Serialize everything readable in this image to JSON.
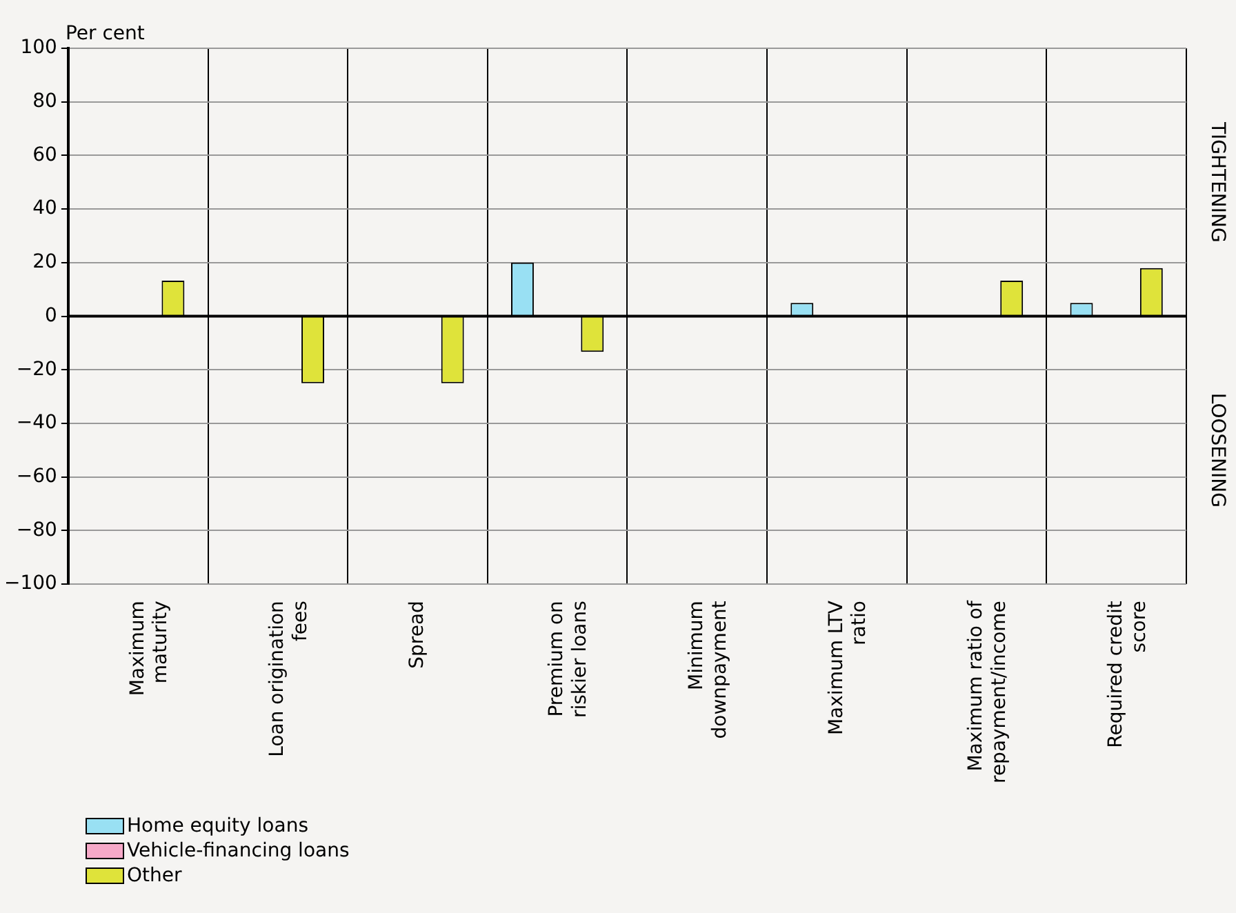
{
  "chart_data": {
    "type": "bar",
    "ylabel": "Per cent",
    "categories": [
      "Maximum maturity",
      "Loan origination fees",
      "Spread",
      "Premium on riskier loans",
      "Minimum downpayment",
      "Maximum LTV ratio",
      "Maximum ratio of repayment/income",
      "Required credit score"
    ],
    "series": [
      {
        "name": "Home equity loans",
        "color": "#99e0f3",
        "values": [
          0,
          0,
          0,
          20,
          0,
          5,
          0,
          5
        ]
      },
      {
        "name": "Vehicle-financing loans",
        "color": "#f6a9c8",
        "values": [
          0,
          0,
          0,
          0,
          0,
          0,
          0,
          0
        ]
      },
      {
        "name": "Other",
        "color": "#dfe33a",
        "values": [
          13.3,
          -25,
          -25,
          -13.3,
          0,
          0,
          13.3,
          18
        ]
      }
    ],
    "ylim": [
      -100,
      100
    ],
    "yticks": [
      -100,
      -80,
      -60,
      -40,
      -20,
      0,
      20,
      40,
      60,
      80,
      100
    ],
    "grid": true,
    "legend": "bottom left",
    "annotations": [
      "TIGHTENING",
      "LOOSENING"
    ]
  }
}
